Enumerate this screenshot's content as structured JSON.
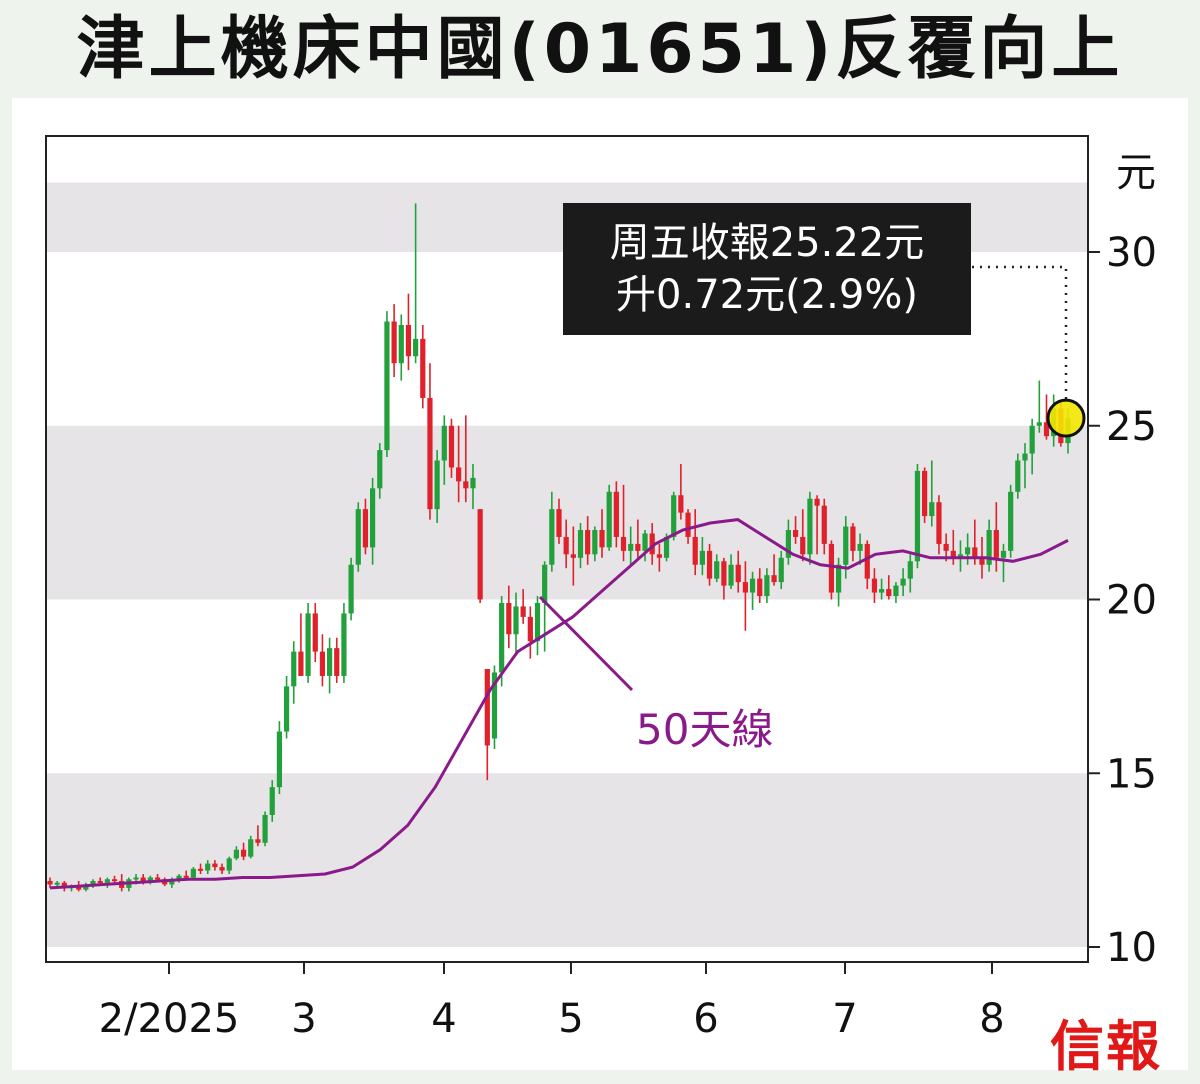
{
  "title": "津上機床中國(01651)反覆向上",
  "brand": "信報",
  "callout": {
    "line1": "周五收報25.22元",
    "line2": "升0.72元(2.9%)"
  },
  "ma_label": "50天線",
  "colors": {
    "up": "#22a03c",
    "down": "#e0202a",
    "ma": "#8a1a8a",
    "band": "#e6e4e6",
    "highlight": "#f4e600"
  },
  "chart_data": {
    "type": "candlestick",
    "y_unit": "元",
    "ylim": [
      10,
      32
    ],
    "y_ticks": [
      10,
      15,
      20,
      25,
      30
    ],
    "x_ticks": [
      "2/2025",
      "3",
      "4",
      "5",
      "6",
      "7",
      "8"
    ],
    "last_close": 25.22,
    "last_change": 0.72,
    "last_change_pct": 2.9,
    "ma50_name": "50天線",
    "ma50": [
      11.7,
      11.75,
      11.8,
      11.85,
      11.9,
      11.95,
      11.95,
      12.0,
      12.0,
      12.05,
      12.1,
      12.3,
      12.8,
      13.5,
      14.6,
      16.0,
      17.4,
      18.5,
      19.0,
      19.5,
      20.2,
      20.9,
      21.6,
      22.0,
      22.2,
      22.3,
      21.8,
      21.3,
      21.0,
      20.9,
      21.3,
      21.4,
      21.2,
      21.2,
      21.2,
      21.1,
      21.3,
      21.7
    ],
    "ohlc": [
      [
        11.9,
        12.0,
        11.7,
        11.8
      ],
      [
        11.8,
        11.9,
        11.7,
        11.85
      ],
      [
        11.85,
        11.9,
        11.6,
        11.7
      ],
      [
        11.7,
        11.8,
        11.6,
        11.75
      ],
      [
        11.75,
        11.9,
        11.6,
        11.65
      ],
      [
        11.65,
        11.85,
        11.6,
        11.8
      ],
      [
        11.8,
        11.95,
        11.7,
        11.9
      ],
      [
        11.9,
        12.0,
        11.8,
        11.85
      ],
      [
        11.85,
        12.0,
        11.7,
        11.95
      ],
      [
        11.95,
        12.05,
        11.8,
        11.9
      ],
      [
        11.9,
        12.1,
        11.6,
        11.7
      ],
      [
        11.7,
        12.0,
        11.6,
        11.95
      ],
      [
        11.95,
        12.1,
        11.8,
        12.0
      ],
      [
        12.0,
        12.1,
        11.8,
        11.85
      ],
      [
        11.85,
        12.05,
        11.8,
        12.0
      ],
      [
        12.0,
        12.1,
        11.9,
        11.95
      ],
      [
        11.95,
        12.0,
        11.75,
        11.8
      ],
      [
        11.8,
        12.0,
        11.7,
        11.95
      ],
      [
        11.95,
        12.1,
        11.85,
        12.05
      ],
      [
        12.05,
        12.2,
        11.9,
        12.0
      ],
      [
        12.0,
        12.3,
        11.95,
        12.25
      ],
      [
        12.25,
        12.4,
        12.1,
        12.2
      ],
      [
        12.2,
        12.5,
        12.1,
        12.4
      ],
      [
        12.4,
        12.5,
        12.2,
        12.3
      ],
      [
        12.3,
        12.4,
        12.1,
        12.2
      ],
      [
        12.2,
        12.6,
        12.1,
        12.55
      ],
      [
        12.55,
        12.9,
        12.5,
        12.8
      ],
      [
        12.8,
        13.0,
        12.5,
        12.6
      ],
      [
        12.6,
        13.2,
        12.55,
        13.1
      ],
      [
        13.1,
        13.5,
        12.9,
        13.0
      ],
      [
        13.0,
        13.9,
        12.9,
        13.8
      ],
      [
        13.8,
        14.8,
        13.6,
        14.6
      ],
      [
        14.6,
        16.5,
        14.4,
        16.2
      ],
      [
        16.2,
        17.8,
        16.0,
        17.5
      ],
      [
        17.5,
        18.8,
        17.0,
        18.5
      ],
      [
        18.5,
        19.6,
        18.0,
        17.8
      ],
      [
        17.8,
        19.9,
        17.6,
        19.6
      ],
      [
        19.6,
        19.9,
        18.2,
        18.5
      ],
      [
        18.5,
        19.0,
        17.5,
        17.8
      ],
      [
        17.8,
        18.9,
        17.3,
        18.6
      ],
      [
        18.6,
        18.9,
        17.6,
        17.8
      ],
      [
        17.8,
        19.9,
        17.6,
        19.6
      ],
      [
        19.6,
        21.2,
        19.4,
        21.0
      ],
      [
        21.0,
        22.8,
        20.8,
        22.6
      ],
      [
        22.6,
        22.9,
        21.3,
        21.5
      ],
      [
        21.5,
        23.5,
        21.0,
        23.2
      ],
      [
        23.2,
        24.5,
        22.9,
        24.3
      ],
      [
        24.3,
        28.3,
        24.1,
        28.0
      ],
      [
        28.0,
        28.5,
        26.4,
        26.8
      ],
      [
        26.8,
        28.2,
        26.3,
        27.9
      ],
      [
        27.9,
        28.8,
        26.6,
        27.0
      ],
      [
        27.0,
        31.4,
        26.8,
        27.5
      ],
      [
        27.5,
        27.9,
        25.5,
        25.8
      ],
      [
        25.8,
        26.8,
        22.3,
        22.6
      ],
      [
        22.6,
        24.3,
        22.2,
        24.0
      ],
      [
        24.0,
        25.3,
        23.3,
        25.0
      ],
      [
        25.0,
        25.2,
        23.5,
        23.8
      ],
      [
        23.8,
        25.0,
        22.8,
        23.4
      ],
      [
        23.4,
        25.3,
        22.8,
        23.2
      ],
      [
        23.2,
        23.9,
        22.6,
        23.5
      ],
      [
        22.6,
        22.6,
        19.9,
        20.0
      ],
      [
        18.0,
        18.0,
        14.8,
        15.8
      ],
      [
        16.0,
        18.1,
        15.7,
        17.9
      ],
      [
        17.9,
        20.1,
        17.5,
        19.9
      ],
      [
        19.9,
        20.4,
        18.6,
        19.0
      ],
      [
        19.0,
        20.2,
        18.4,
        19.8
      ],
      [
        19.8,
        20.3,
        19.3,
        19.5
      ],
      [
        19.5,
        19.8,
        18.3,
        18.8
      ],
      [
        18.8,
        20.1,
        18.4,
        19.9
      ],
      [
        19.9,
        21.1,
        18.5,
        21.0
      ],
      [
        21.0,
        23.1,
        20.8,
        22.6
      ],
      [
        22.6,
        22.9,
        21.6,
        21.8
      ],
      [
        21.8,
        22.3,
        20.9,
        21.3
      ],
      [
        21.3,
        22.1,
        20.4,
        21.2
      ],
      [
        21.2,
        22.2,
        20.9,
        22.0
      ],
      [
        22.0,
        22.4,
        21.0,
        21.3
      ],
      [
        21.3,
        22.1,
        21.1,
        22.0
      ],
      [
        22.0,
        22.6,
        21.2,
        21.5
      ],
      [
        21.5,
        23.3,
        21.4,
        23.1
      ],
      [
        23.1,
        23.4,
        21.5,
        21.8
      ],
      [
        21.8,
        23.3,
        21.1,
        21.4
      ],
      [
        21.4,
        22.1,
        21.0,
        21.6
      ],
      [
        21.6,
        22.3,
        21.2,
        21.4
      ],
      [
        21.4,
        22.0,
        21.1,
        21.9
      ],
      [
        21.9,
        22.2,
        21.0,
        21.3
      ],
      [
        21.3,
        21.6,
        20.8,
        21.2
      ],
      [
        21.2,
        21.9,
        21.1,
        21.8
      ],
      [
        21.8,
        23.1,
        21.7,
        23.0
      ],
      [
        23.0,
        23.9,
        22.3,
        22.5
      ],
      [
        22.5,
        22.6,
        21.6,
        21.8
      ],
      [
        21.8,
        22.6,
        20.7,
        21.0
      ],
      [
        21.0,
        21.8,
        20.7,
        21.4
      ],
      [
        21.4,
        21.6,
        20.4,
        20.6
      ],
      [
        20.6,
        21.3,
        20.5,
        21.1
      ],
      [
        21.1,
        21.2,
        20.0,
        20.4
      ],
      [
        20.4,
        21.3,
        20.3,
        21.0
      ],
      [
        21.0,
        21.4,
        20.2,
        20.5
      ],
      [
        20.5,
        21.1,
        19.1,
        20.2
      ],
      [
        20.2,
        20.8,
        19.7,
        20.6
      ],
      [
        20.6,
        20.9,
        19.9,
        20.1
      ],
      [
        20.1,
        20.9,
        19.9,
        20.7
      ],
      [
        20.7,
        21.3,
        20.4,
        20.5
      ],
      [
        20.5,
        21.4,
        20.3,
        21.2
      ],
      [
        21.2,
        22.3,
        21.0,
        22.0
      ],
      [
        22.0,
        22.4,
        21.6,
        21.8
      ],
      [
        21.8,
        22.6,
        21.1,
        21.3
      ],
      [
        21.3,
        23.1,
        21.0,
        22.9
      ],
      [
        22.9,
        23.0,
        21.3,
        22.7
      ],
      [
        22.7,
        22.9,
        21.3,
        21.6
      ],
      [
        21.6,
        21.7,
        20.0,
        20.2
      ],
      [
        20.2,
        21.2,
        19.8,
        21.0
      ],
      [
        21.0,
        22.4,
        20.6,
        22.1
      ],
      [
        22.1,
        22.2,
        21.1,
        21.4
      ],
      [
        21.4,
        21.9,
        21.0,
        21.6
      ],
      [
        21.6,
        21.7,
        20.3,
        20.6
      ],
      [
        20.6,
        20.9,
        19.9,
        20.2
      ],
      [
        20.2,
        20.6,
        20.0,
        20.3
      ],
      [
        20.3,
        20.7,
        20.0,
        20.1
      ],
      [
        20.1,
        20.5,
        19.9,
        20.4
      ],
      [
        20.4,
        20.9,
        20.1,
        20.6
      ],
      [
        20.6,
        21.3,
        20.2,
        21.1
      ],
      [
        21.1,
        23.9,
        20.9,
        23.7
      ],
      [
        23.7,
        23.8,
        22.2,
        22.4
      ],
      [
        22.4,
        24.0,
        22.1,
        22.8
      ],
      [
        22.8,
        23.0,
        21.3,
        21.6
      ],
      [
        21.6,
        21.9,
        21.1,
        21.4
      ],
      [
        21.4,
        22.0,
        21.0,
        21.2
      ],
      [
        21.2,
        21.7,
        20.8,
        21.3
      ],
      [
        21.3,
        21.9,
        21.0,
        21.5
      ],
      [
        21.5,
        22.3,
        21.0,
        21.2
      ],
      [
        21.2,
        21.8,
        20.6,
        21.0
      ],
      [
        21.0,
        22.3,
        20.8,
        22.0
      ],
      [
        22.0,
        22.8,
        20.8,
        21.2
      ],
      [
        21.2,
        21.6,
        20.5,
        21.4
      ],
      [
        21.4,
        23.3,
        21.2,
        23.1
      ],
      [
        23.1,
        24.2,
        22.9,
        24.0
      ],
      [
        24.0,
        24.5,
        23.2,
        24.2
      ],
      [
        24.2,
        25.2,
        23.6,
        25.0
      ],
      [
        25.0,
        26.3,
        24.8,
        25.1
      ],
      [
        25.1,
        25.9,
        24.6,
        24.7
      ],
      [
        24.7,
        25.9,
        24.4,
        25.5
      ],
      [
        25.5,
        25.7,
        24.4,
        24.5
      ],
      [
        24.5,
        25.5,
        24.2,
        25.22
      ]
    ]
  }
}
